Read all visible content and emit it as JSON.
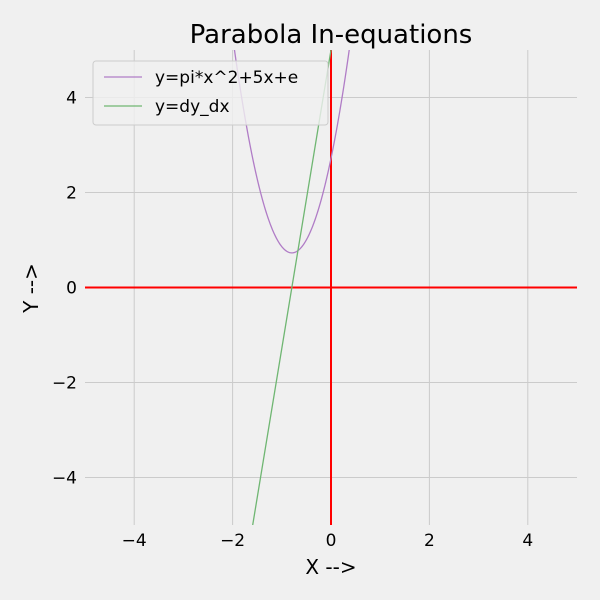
{
  "chart_data": {
    "type": "line",
    "title": "Parabola In-equations",
    "xlabel": "X -->",
    "ylabel": "Y -->",
    "xlim": [
      -5,
      5
    ],
    "ylim": [
      -5,
      5
    ],
    "xticks": [
      -4,
      -2,
      0,
      2,
      4
    ],
    "yticks": [
      -4,
      -2,
      0,
      2,
      4
    ],
    "xtick_labels": [
      "−4",
      "−2",
      "0",
      "2",
      "4"
    ],
    "ytick_labels": [
      "−4",
      "−2",
      "0",
      "2",
      "4"
    ],
    "grid": true,
    "legend_position": "top-left",
    "series": [
      {
        "name": "y=pi*x^2+5x+e",
        "color": "#b07cc6",
        "function": "pi*x^2+5*x+e",
        "x": [
          -2.0,
          -1.8,
          -1.6,
          -1.4,
          -1.2,
          -1.0,
          -0.8,
          -0.6,
          -0.4,
          -0.2,
          0.0,
          0.2,
          0.4
        ],
        "values": [
          5.28,
          3.9,
          2.76,
          1.88,
          1.24,
          0.86,
          0.73,
          0.85,
          1.22,
          1.84,
          2.72,
          3.84,
          5.22
        ]
      },
      {
        "name": "y=dy_dx",
        "color": "#6fb672",
        "function": "2*pi*x+5",
        "x": [
          -1.6,
          -1.2,
          -0.8,
          -0.4,
          0.0
        ],
        "values": [
          -5.05,
          -2.54,
          -0.03,
          2.49,
          5.0
        ]
      }
    ],
    "reference_lines": [
      {
        "orientation": "horizontal",
        "value": 0,
        "color": "#ff0000"
      },
      {
        "orientation": "vertical",
        "value": 0,
        "color": "#ff0000"
      }
    ]
  },
  "colors": {
    "background": "#f0f0f0",
    "grid": "#cbcbcb",
    "reference": "#ff0000"
  }
}
